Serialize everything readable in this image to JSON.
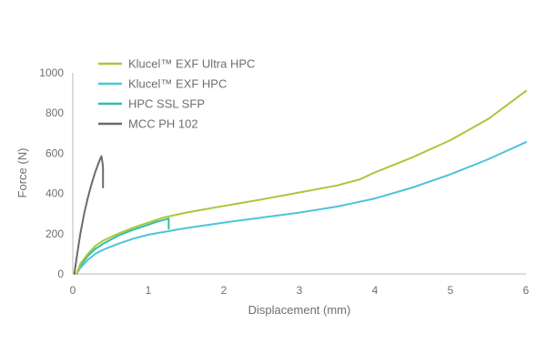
{
  "chart_data": {
    "type": "line",
    "title": "",
    "xlabel": "Displacement (mm)",
    "ylabel": "Force (N)",
    "xlim": [
      0,
      6
    ],
    "ylim": [
      0,
      1000
    ],
    "x_ticks": [
      "0",
      "1",
      "2",
      "3",
      "4",
      "5",
      "6"
    ],
    "y_ticks": [
      "0",
      "200",
      "400",
      "600",
      "800",
      "1000"
    ],
    "grid": false,
    "legend_position": "top-left",
    "series": [
      {
        "name": "Klucel™ EXF Ultra HPC",
        "color": "#a6c93a",
        "x": [
          0.05,
          0.1,
          0.2,
          0.3,
          0.4,
          0.6,
          0.8,
          1.0,
          1.2,
          1.5,
          2.0,
          2.5,
          3.0,
          3.5,
          3.8,
          4.0,
          4.5,
          5.0,
          5.5,
          6.0
        ],
        "y": [
          0,
          50,
          100,
          140,
          165,
          200,
          230,
          255,
          280,
          305,
          338,
          370,
          405,
          440,
          470,
          505,
          580,
          665,
          770,
          910
        ]
      },
      {
        "name": "Klucel™ EXF HPC",
        "color": "#4dc4d8",
        "x": [
          0.05,
          0.1,
          0.2,
          0.3,
          0.4,
          0.6,
          0.8,
          1.0,
          1.5,
          2.0,
          2.5,
          3.0,
          3.5,
          4.0,
          4.5,
          5.0,
          5.5,
          6.0
        ],
        "y": [
          0,
          30,
          70,
          100,
          120,
          150,
          175,
          195,
          228,
          255,
          280,
          305,
          335,
          375,
          430,
          495,
          570,
          655
        ]
      },
      {
        "name": "HPC SSL SFP",
        "color": "#2fbfa6",
        "x": [
          0.05,
          0.1,
          0.2,
          0.3,
          0.4,
          0.6,
          0.8,
          1.0,
          1.1,
          1.2,
          1.27,
          1.27
        ],
        "y": [
          0,
          40,
          90,
          125,
          150,
          190,
          220,
          245,
          258,
          268,
          275,
          225
        ]
      },
      {
        "name": "MCC PH 102",
        "color": "#6b6b6b",
        "x": [
          0.02,
          0.05,
          0.1,
          0.15,
          0.2,
          0.25,
          0.3,
          0.33,
          0.36,
          0.38,
          0.39,
          0.4,
          0.4
        ],
        "y": [
          0,
          80,
          200,
          300,
          380,
          450,
          510,
          540,
          570,
          585,
          560,
          530,
          430
        ]
      }
    ]
  }
}
